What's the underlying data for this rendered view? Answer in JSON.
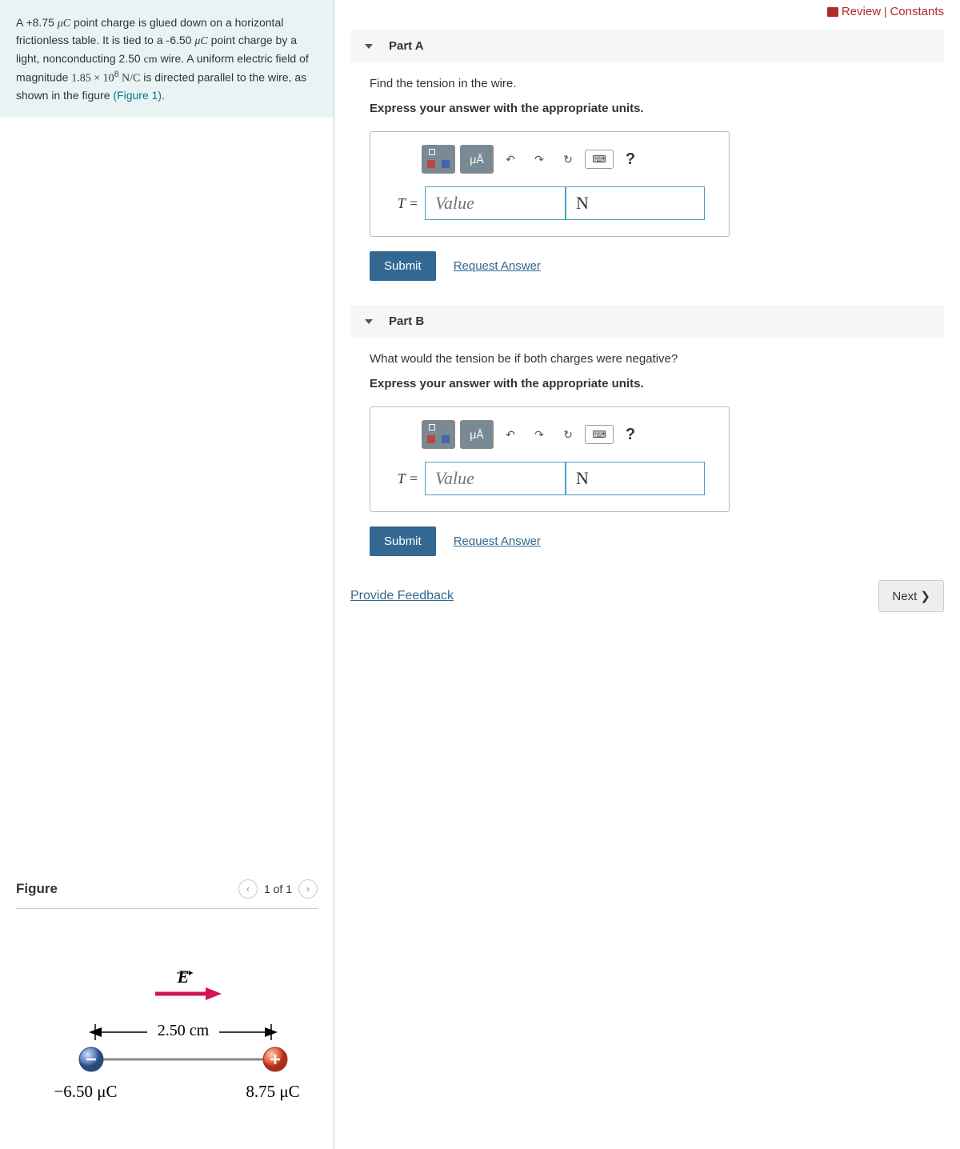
{
  "topLinks": {
    "review": "Review",
    "constants": "Constants"
  },
  "problem": {
    "text_prefix": "A +8.75 ",
    "mu": "μC",
    "t1": " point charge is glued down on a horizontal frictionless table. It is tied to a -6.50 ",
    "t2": " point charge by a light, nonconducting 2.50 ",
    "cm": "cm",
    "t3": " wire. A uniform electric field of magnitude ",
    "field": "1.85 × 10",
    "field_exp": "8",
    "nc": " N/C",
    "t4": " is directed parallel to the wire, as shown in the figure ",
    "figlink": "(Figure 1)",
    "tail": "."
  },
  "parts": [
    {
      "id": "A",
      "title": "Part A",
      "prompt": "Find the tension in the wire.",
      "hint": "Express your answer with the appropriate units.",
      "variable": "T =",
      "value_placeholder": "Value",
      "unit": "N",
      "submit": "Submit",
      "request": "Request Answer",
      "units_btn": "μÅ"
    },
    {
      "id": "B",
      "title": "Part B",
      "prompt": "What would the tension be if both charges were negative?",
      "hint": "Express your answer with the appropriate units.",
      "variable": "T =",
      "value_placeholder": "Value",
      "unit": "N",
      "submit": "Submit",
      "request": "Request Answer",
      "units_btn": "μÅ"
    }
  ],
  "feedback": "Provide Feedback",
  "next": "Next ❯",
  "figure": {
    "title": "Figure",
    "pager": "1 of 1",
    "E_label": "E",
    "distance": "2.50 cm",
    "left_charge": "−6.50 μC",
    "right_charge": "8.75 μC",
    "colors": {
      "neg": "#5b7fb8",
      "neg_dark": "#2a4a7a",
      "pos": "#e85a3a",
      "pos_dark": "#a8301a",
      "arrow": "#d4145a",
      "wire": "#888"
    }
  }
}
